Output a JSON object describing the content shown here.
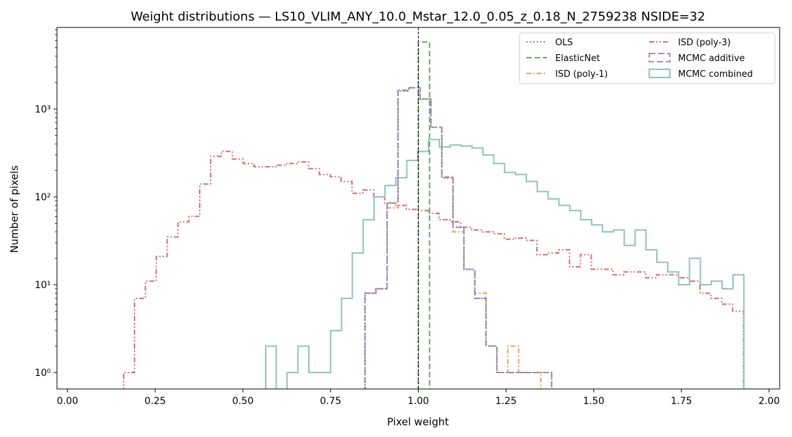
{
  "chart_data": {
    "type": "line",
    "title": "Weight distributions — LS10_VLIM_ANY_10.0_Mstar_12.0_0.05_z_0.18_N_2759238  NSIDE=32",
    "xlabel": "Pixel weight",
    "ylabel": "Number of pixels",
    "xlim": [
      -0.03,
      2.03
    ],
    "ylim": [
      0.65,
      8500
    ],
    "yscale": "log",
    "grid": false,
    "legend_position": "top-right",
    "legend_columns": 2,
    "x_ticks": [
      "0.00",
      "0.25",
      "0.50",
      "0.75",
      "1.00",
      "1.25",
      "1.50",
      "1.75",
      "2.00"
    ],
    "x_tick_values": [
      0,
      0.25,
      0.5,
      0.75,
      1.0,
      1.25,
      1.5,
      1.75,
      2.0
    ],
    "y_ticks": [
      "10⁰",
      "10¹",
      "10²",
      "10³"
    ],
    "y_tick_values": [
      1,
      10,
      100,
      1000
    ],
    "reference_line": {
      "x": 1.0,
      "color": "#000000"
    },
    "series": [
      {
        "name": "OLS",
        "color": "#6a8fbf",
        "dash": "dotted",
        "edges": [
          0.848,
          0.879,
          0.911,
          0.942,
          0.973,
          1.005,
          1.036,
          1.067,
          1.099,
          1.13,
          1.161,
          1.193,
          1.224,
          1.255,
          1.286,
          1.318,
          1.349,
          1.38
        ],
        "counts": [
          8,
          9,
          85,
          1600,
          1750,
          1300,
          620,
          165,
          45,
          15,
          7,
          2,
          1,
          1,
          1,
          1,
          1
        ]
      },
      {
        "name": "ElasticNet",
        "color": "#6aa864",
        "dash": "dashed",
        "edges": [
          1.0,
          1.032
        ],
        "counts": [
          5800
        ]
      },
      {
        "name": "ISD (poly-1)",
        "color": "#f0a04f",
        "dash": "dashdot",
        "edges": [
          0.848,
          0.879,
          0.911,
          0.942,
          0.973,
          1.005,
          1.036,
          1.067,
          1.099,
          1.13,
          1.161,
          1.193,
          1.224,
          1.255,
          1.286,
          1.318,
          1.349,
          1.38
        ],
        "counts": [
          8,
          9,
          75,
          1650,
          1750,
          1300,
          620,
          170,
          40,
          15,
          8,
          2,
          1,
          2,
          1,
          1,
          0
        ]
      },
      {
        "name": "ISD (poly-3)",
        "color": "#dd6a6a",
        "dash": "dashdotdot",
        "edges": [
          0.16,
          0.191,
          0.222,
          0.253,
          0.284,
          0.315,
          0.346,
          0.377,
          0.408,
          0.439,
          0.47,
          0.501,
          0.532,
          0.563,
          0.594,
          0.625,
          0.656,
          0.687,
          0.718,
          0.749,
          0.78,
          0.811,
          0.842,
          0.873,
          0.904,
          0.935,
          0.966,
          0.997,
          1.028,
          1.059,
          1.09,
          1.121,
          1.152,
          1.183,
          1.214,
          1.245,
          1.276,
          1.307,
          1.338,
          1.369,
          1.4,
          1.431,
          1.462,
          1.493,
          1.524,
          1.555,
          1.586,
          1.617,
          1.648,
          1.679,
          1.71,
          1.741,
          1.772,
          1.803,
          1.834,
          1.865,
          1.896,
          1.927
        ],
        "counts": [
          1,
          7,
          11,
          21,
          35,
          52,
          60,
          140,
          290,
          330,
          270,
          240,
          220,
          220,
          230,
          240,
          250,
          210,
          180,
          170,
          150,
          110,
          120,
          100,
          85,
          80,
          72,
          70,
          65,
          55,
          52,
          45,
          42,
          40,
          38,
          33,
          34,
          32,
          22,
          23,
          25,
          16,
          22,
          15,
          15,
          13,
          14,
          14,
          12,
          13,
          13,
          12,
          11,
          8,
          7,
          6,
          5
        ]
      },
      {
        "name": "MCMC additive",
        "color": "#b187b8",
        "dash": "longdash",
        "edges": [
          0.848,
          0.879,
          0.911,
          0.942,
          0.973,
          1.005,
          1.036,
          1.067,
          1.099,
          1.13,
          1.161,
          1.193,
          1.224,
          1.255,
          1.286,
          1.318,
          1.349,
          1.38
        ],
        "counts": [
          8,
          9,
          85,
          1620,
          1750,
          1300,
          620,
          165,
          45,
          15,
          7,
          2,
          1,
          1,
          1,
          1,
          1
        ]
      },
      {
        "name": "MCMC combined",
        "color": "#8ec3b8",
        "dash": "solid",
        "edges": [
          0.565,
          0.595,
          0.626,
          0.657,
          0.688,
          0.719,
          0.75,
          0.781,
          0.812,
          0.843,
          0.874,
          0.905,
          0.936,
          0.967,
          0.998,
          1.029,
          1.06,
          1.091,
          1.122,
          1.153,
          1.184,
          1.215,
          1.246,
          1.277,
          1.308,
          1.339,
          1.37,
          1.401,
          1.432,
          1.463,
          1.494,
          1.525,
          1.556,
          1.587,
          1.618,
          1.649,
          1.68,
          1.711,
          1.742,
          1.773,
          1.804,
          1.835,
          1.866,
          1.897,
          1.928
        ],
        "counts": [
          2,
          0.5,
          1,
          2,
          1,
          1,
          3,
          7,
          23,
          55,
          100,
          135,
          165,
          260,
          330,
          450,
          370,
          390,
          380,
          360,
          300,
          240,
          190,
          180,
          150,
          115,
          95,
          80,
          70,
          55,
          48,
          40,
          42,
          28,
          42,
          25,
          18,
          14,
          10,
          20,
          10,
          11,
          9,
          13
        ]
      }
    ]
  }
}
